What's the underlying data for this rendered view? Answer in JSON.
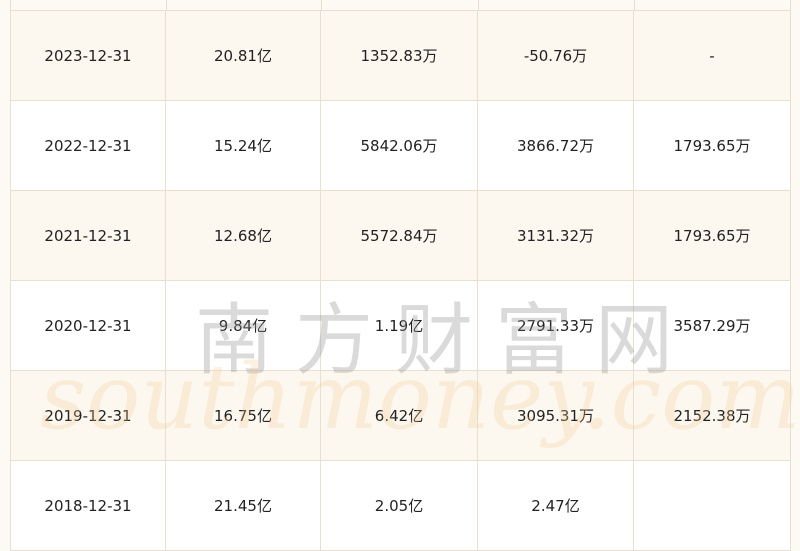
{
  "table": {
    "rows": [
      [
        "2023-12-31",
        "20.81亿",
        "1352.83万",
        "-50.76万",
        "-"
      ],
      [
        "2022-12-31",
        "15.24亿",
        "5842.06万",
        "3866.72万",
        "1793.65万"
      ],
      [
        "2021-12-31",
        "12.68亿",
        "5572.84万",
        "3131.32万",
        "1793.65万"
      ],
      [
        "2020-12-31",
        "9.84亿",
        "1.19亿",
        "2791.33万",
        "3587.29万"
      ],
      [
        "2019-12-31",
        "16.75亿",
        "6.42亿",
        "3095.31万",
        "2152.38万"
      ],
      [
        "2018-12-31",
        "21.45亿",
        "2.05亿",
        "2.47亿",
        ""
      ]
    ]
  },
  "watermark": {
    "cn": "南方财富网",
    "en": "southmoney.com"
  }
}
